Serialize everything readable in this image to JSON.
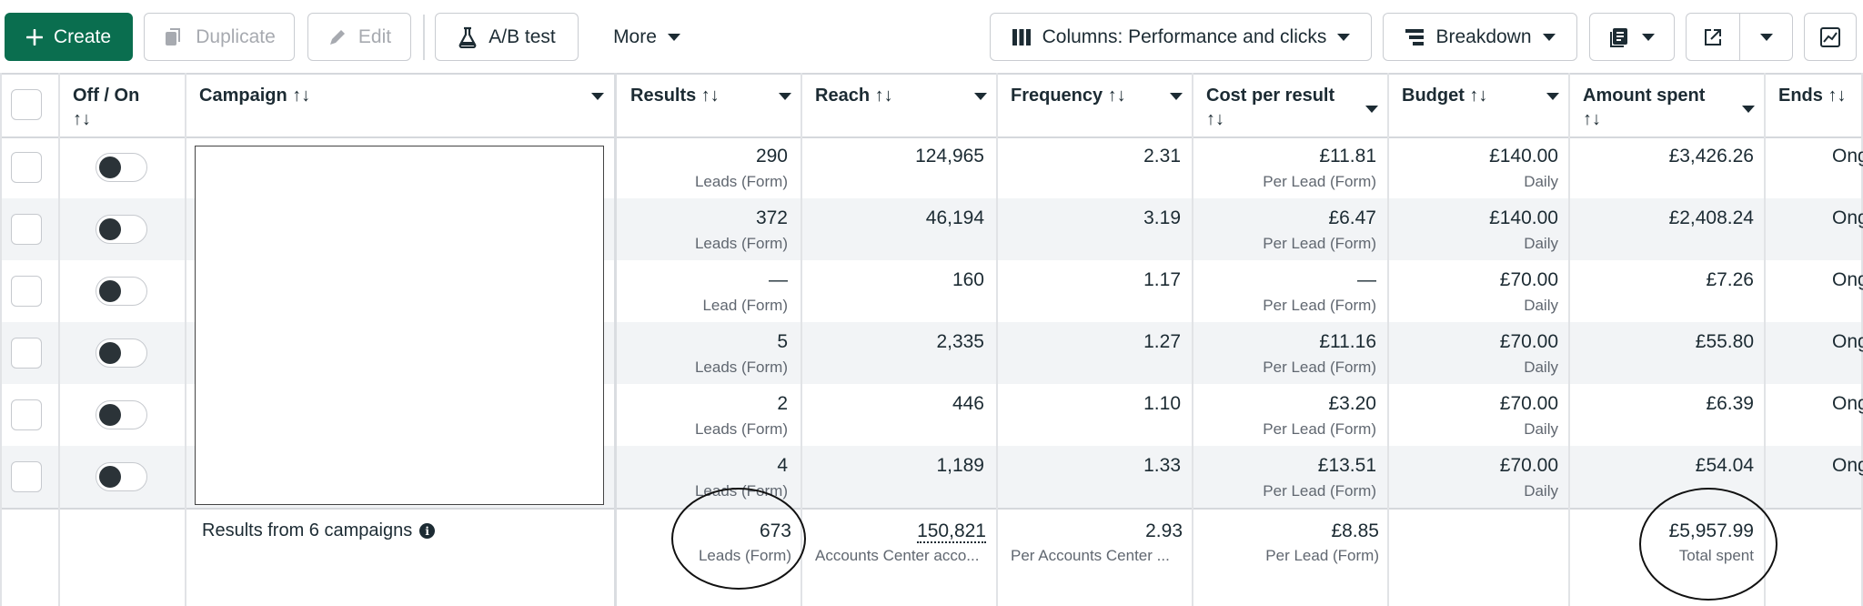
{
  "toolbar": {
    "create": "Create",
    "duplicate": "Duplicate",
    "edit": "Edit",
    "ab_test": "A/B test",
    "more": "More",
    "columns": "Columns: Performance and clicks",
    "breakdown": "Breakdown"
  },
  "headers": {
    "off_on_1": "Off / On",
    "off_on_2": "↑↓",
    "campaign": "Campaign ↑↓",
    "results": "Results ↑↓",
    "reach": "Reach ↑↓",
    "frequency": "Frequency ↑↓",
    "cpr_1": "Cost per result",
    "cpr_2": "↑↓",
    "budget": "Budget ↑↓",
    "spent_1": "Amount spent",
    "spent_2": "↑↓",
    "ends": "Ends ↑↓"
  },
  "rows": [
    {
      "results": "290",
      "results_sub": "Leads (Form)",
      "reach": "124,965",
      "frequency": "2.31",
      "cpr": "£11.81",
      "cpr_sub": "Per Lead (Form)",
      "budget": "£140.00",
      "budget_sub": "Daily",
      "spent": "£3,426.26",
      "ends": "Ong"
    },
    {
      "results": "372",
      "results_sub": "Leads (Form)",
      "reach": "46,194",
      "frequency": "3.19",
      "cpr": "£6.47",
      "cpr_sub": "Per Lead (Form)",
      "budget": "£140.00",
      "budget_sub": "Daily",
      "spent": "£2,408.24",
      "ends": "Ong"
    },
    {
      "results": "—",
      "results_sub": "Lead (Form)",
      "reach": "160",
      "frequency": "1.17",
      "cpr": "—",
      "cpr_sub": "Per Lead (Form)",
      "budget": "£70.00",
      "budget_sub": "Daily",
      "spent": "£7.26",
      "ends": "Ong"
    },
    {
      "results": "5",
      "results_sub": "Leads (Form)",
      "reach": "2,335",
      "frequency": "1.27",
      "cpr": "£11.16",
      "cpr_sub": "Per Lead (Form)",
      "budget": "£70.00",
      "budget_sub": "Daily",
      "spent": "£55.80",
      "ends": "Ong"
    },
    {
      "results": "2",
      "results_sub": "Leads (Form)",
      "reach": "446",
      "frequency": "1.10",
      "cpr": "£3.20",
      "cpr_sub": "Per Lead (Form)",
      "budget": "£70.00",
      "budget_sub": "Daily",
      "spent": "£6.39",
      "ends": "Ong"
    },
    {
      "results": "4",
      "results_sub": "Leads (Form)",
      "reach": "1,189",
      "frequency": "1.33",
      "cpr": "£13.51",
      "cpr_sub": "Per Lead (Form)",
      "budget": "£70.00",
      "budget_sub": "Daily",
      "spent": "£54.04",
      "ends": "Ong"
    }
  ],
  "footer": {
    "label": "Results from 6 campaigns",
    "results": "673",
    "results_sub": "Leads (Form)",
    "reach": "150,821",
    "reach_sub": "Accounts Center acco...",
    "frequency": "2.93",
    "frequency_sub": "Per Accounts Center ...",
    "cpr": "£8.85",
    "cpr_sub": "Per Lead (Form)",
    "spent": "£5,957.99",
    "spent_sub": "Total spent"
  },
  "colors": {
    "create_bg": "#0a6e4f",
    "row_alt_bg": "#f2f4f6",
    "toggle_knob": "#2b3338"
  },
  "icons": [
    "plus-icon",
    "duplicate-icon",
    "pencil-icon",
    "flask-icon",
    "caret-down-icon",
    "columns-icon",
    "breakdown-icon",
    "report-icon",
    "export-icon",
    "chart-icon",
    "info-icon"
  ]
}
